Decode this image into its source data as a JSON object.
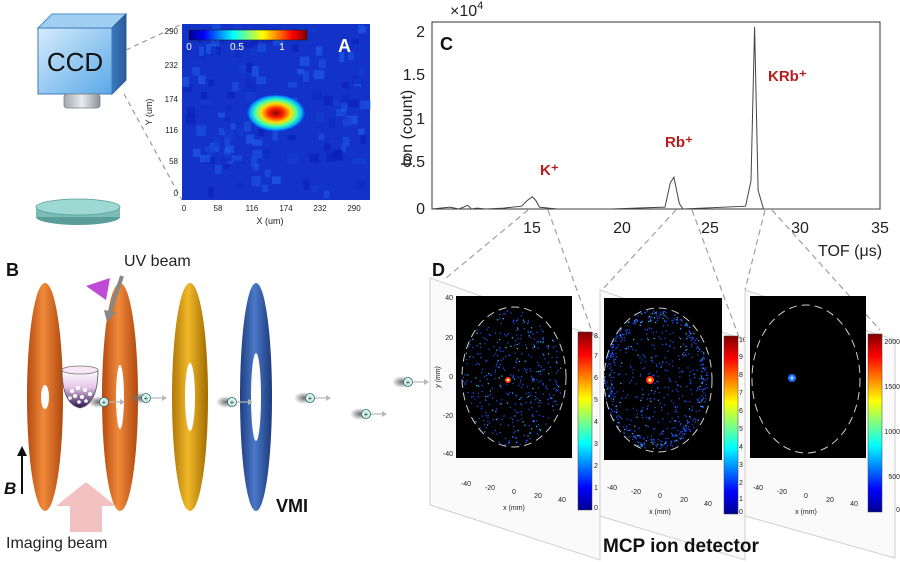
{
  "panels": {
    "a": "A",
    "b": "B",
    "c": "C",
    "d": "D"
  },
  "ccd": {
    "label": "CCD"
  },
  "heatmap": {
    "xlabel": "X (um)",
    "ylabel": "Y (um)",
    "xticks": [
      "0",
      "58",
      "116",
      "174",
      "232",
      "290"
    ],
    "yticks": [
      "290",
      "232",
      "174",
      "116",
      "58",
      "0"
    ],
    "cbar_ticks": [
      "0",
      "0.5",
      "1"
    ]
  },
  "tof": {
    "exponent_label": "×10",
    "exponent_power": "4",
    "ylabel": "Ion (count)",
    "xlabel": "TOF (μs)",
    "xticks": [
      "15",
      "20",
      "25",
      "30",
      "35"
    ],
    "yticks": [
      "2",
      "1.5",
      "1",
      "0.5",
      "0"
    ],
    "peak_labels": [
      "K⁺",
      "Rb⁺",
      "KRb⁺"
    ]
  },
  "setup": {
    "uv_beam": "UV beam",
    "vmi": "VMI",
    "imaging_beam": "Imaging beam",
    "b_field": "B",
    "ion_symbol": "+"
  },
  "detector": {
    "title": "MCP ion detector",
    "xlabel": "x (mm)",
    "ylabel": "y (mm)",
    "axis_ticks": [
      "-40",
      "-20",
      "0",
      "20",
      "40"
    ],
    "cbar1_ticks": [
      "8",
      "7",
      "6",
      "5",
      "4",
      "3",
      "2",
      "1",
      "0"
    ],
    "cbar2_ticks": [
      "10",
      "9",
      "8",
      "7",
      "6",
      "5",
      "4",
      "3",
      "2",
      "1",
      "0"
    ],
    "cbar3_ticks": [
      "2000",
      "1500",
      "1000",
      "500",
      "0"
    ]
  },
  "chart_data": [
    {
      "type": "heatmap",
      "title": "",
      "xlabel": "X (um)",
      "ylabel": "Y (um)",
      "xlim": [
        0,
        320
      ],
      "ylim": [
        0,
        300
      ],
      "colorbar_range": [
        0,
        1.2
      ],
      "colorbar_ticks": [
        0,
        0.5,
        1
      ],
      "peak": {
        "x": 160,
        "y": 135,
        "value": 1.2
      }
    },
    {
      "type": "line",
      "title": "",
      "xlabel": "TOF (μs)",
      "ylabel": "Ion (count)",
      "xlim": [
        10,
        35
      ],
      "ylim": [
        0,
        20000
      ],
      "y_multiplier": "×10^4",
      "series": [
        {
          "x": [
            10,
            11,
            11.5,
            12,
            12.2,
            12.5,
            13,
            14,
            15,
            15.3,
            15.6,
            15.8,
            16,
            16.5,
            17,
            20,
            23,
            23.3,
            23.5,
            23.8,
            24,
            27.5,
            27.8,
            28,
            28.2,
            28.5,
            30,
            35
          ],
          "y": [
            0,
            200,
            0,
            400,
            0,
            100,
            0,
            100,
            300,
            900,
            1300,
            900,
            200,
            100,
            0,
            0,
            200,
            2800,
            3400,
            600,
            0,
            300,
            3000,
            19500,
            2000,
            0,
            0,
            0
          ]
        }
      ],
      "annotations": [
        {
          "text": "K⁺",
          "x": 15.6
        },
        {
          "text": "Rb⁺",
          "x": 23.5
        },
        {
          "text": "KRb⁺",
          "x": 28
        }
      ]
    },
    {
      "type": "heatmap",
      "title": "",
      "xlabel": "x (mm)",
      "ylabel": "y (mm)",
      "xlim": [
        -45,
        45
      ],
      "ylim": [
        -45,
        45
      ],
      "colorbar_range": [
        0,
        8
      ],
      "ion": "K⁺"
    },
    {
      "type": "heatmap",
      "title": "",
      "xlabel": "x (mm)",
      "ylabel": "",
      "xlim": [
        -45,
        45
      ],
      "ylim": [
        -45,
        45
      ],
      "colorbar_range": [
        0,
        10
      ],
      "ion": "Rb⁺"
    },
    {
      "type": "heatmap",
      "title": "",
      "xlabel": "x (mm)",
      "ylabel": "",
      "xlim": [
        -45,
        45
      ],
      "ylim": [
        -45,
        45
      ],
      "colorbar_range": [
        0,
        2000
      ],
      "ion": "KRb⁺"
    }
  ]
}
